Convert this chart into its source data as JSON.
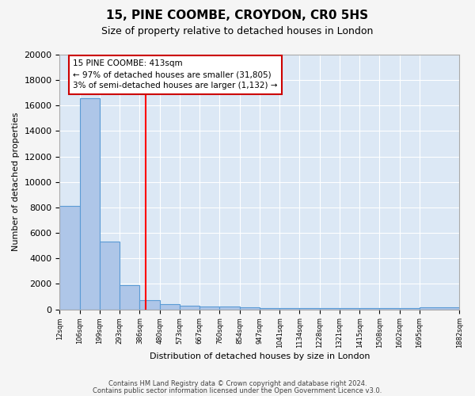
{
  "title1": "15, PINE COOMBE, CROYDON, CR0 5HS",
  "title2": "Size of property relative to detached houses in London",
  "xlabel": "Distribution of detached houses by size in London",
  "ylabel": "Number of detached properties",
  "bar_values": [
    8100,
    16600,
    5300,
    1900,
    700,
    400,
    300,
    200,
    200,
    150,
    100,
    100,
    100,
    100,
    100,
    100,
    100,
    100,
    150
  ],
  "bin_edges": [
    12,
    106,
    199,
    293,
    386,
    480,
    573,
    667,
    760,
    854,
    947,
    1041,
    1134,
    1228,
    1321,
    1415,
    1508,
    1602,
    1695,
    1882
  ],
  "tick_labels": [
    "12sqm",
    "106sqm",
    "199sqm",
    "293sqm",
    "386sqm",
    "480sqm",
    "573sqm",
    "667sqm",
    "760sqm",
    "854sqm",
    "947sqm",
    "1041sqm",
    "1134sqm",
    "1228sqm",
    "1321sqm",
    "1415sqm",
    "1508sqm",
    "1602sqm",
    "1695sqm",
    "1882sqm"
  ],
  "bar_color": "#aec6e8",
  "bar_edge_color": "#5b9bd5",
  "red_line_x": 413,
  "annotation_line1": "15 PINE COOMBE: 413sqm",
  "annotation_line2": "← 97% of detached houses are smaller (31,805)",
  "annotation_line3": "3% of semi-detached houses are larger (1,132) →",
  "annotation_box_color": "#ffffff",
  "annotation_box_edge": "#cc0000",
  "footer1": "Contains HM Land Registry data © Crown copyright and database right 2024.",
  "footer2": "Contains public sector information licensed under the Open Government Licence v3.0.",
  "ylim": [
    0,
    20000
  ],
  "yticks": [
    0,
    2000,
    4000,
    6000,
    8000,
    10000,
    12000,
    14000,
    16000,
    18000,
    20000
  ],
  "background_color": "#dce8f5",
  "grid_color": "#ffffff",
  "fig_bg_color": "#f5f5f5"
}
